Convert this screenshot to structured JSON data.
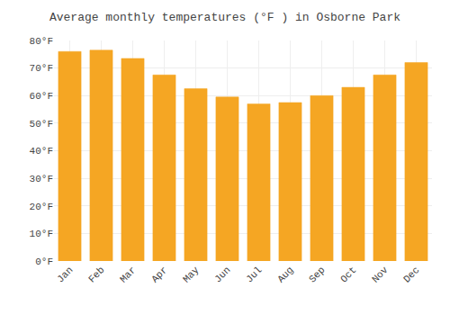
{
  "chart_data": {
    "type": "bar",
    "title": "Average monthly temperatures (°F ) in Osborne Park",
    "categories": [
      "Jan",
      "Feb",
      "Mar",
      "Apr",
      "May",
      "Jun",
      "Jul",
      "Aug",
      "Sep",
      "Oct",
      "Nov",
      "Dec"
    ],
    "values": [
      76,
      76.5,
      73.5,
      67.5,
      62.5,
      59.5,
      57,
      57.5,
      60,
      63,
      67.5,
      72
    ],
    "color": "#F5A623",
    "ylim": [
      0,
      80
    ],
    "yticks": [
      {
        "value": 0,
        "label": "0°F"
      },
      {
        "value": 10,
        "label": "10°F"
      },
      {
        "value": 20,
        "label": "20°F"
      },
      {
        "value": 30,
        "label": "30°F"
      },
      {
        "value": 40,
        "label": "40°F"
      },
      {
        "value": 50,
        "label": "50°F"
      },
      {
        "value": 60,
        "label": "60°F"
      },
      {
        "value": 70,
        "label": "70°F"
      },
      {
        "value": 80,
        "label": "80°F"
      }
    ],
    "grid": true
  }
}
